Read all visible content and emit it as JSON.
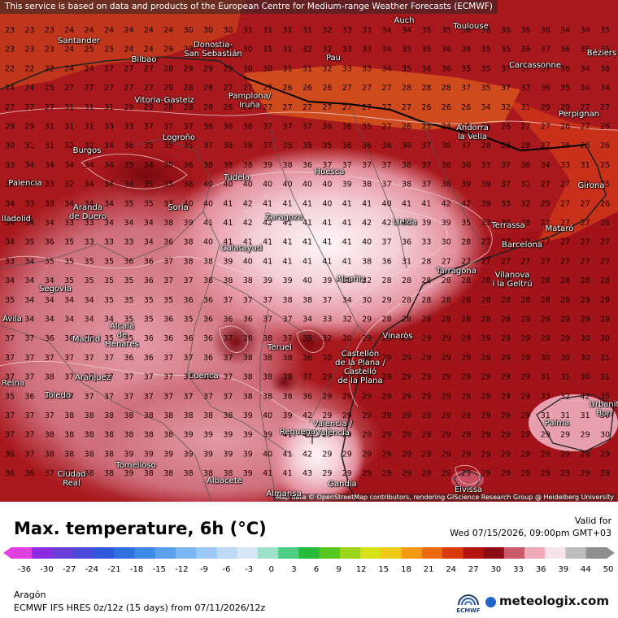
{
  "map": {
    "disclaimer": "This service is based on data and products of the European Centre for Medium-range Weather Forecasts (ECMWF)",
    "attribution": "Map data © OpenStreetMap contributors, rendering GIScience Research Group @ Heidelberg University",
    "cities": [
      {
        "id": "auch",
        "name": "Auch"
      },
      {
        "id": "toulouse",
        "name": "Toulouse"
      },
      {
        "id": "santander",
        "name": "Santander"
      },
      {
        "id": "donostia",
        "name": "Donostia-\nSan Sebastián"
      },
      {
        "id": "bilbao",
        "name": "Bilbao"
      },
      {
        "id": "pau",
        "name": "Pau"
      },
      {
        "id": "carcassonne",
        "name": "Carcassonne"
      },
      {
        "id": "beziers",
        "name": "Béziers"
      },
      {
        "id": "pamplona",
        "name": "Pamplona/\nIruña"
      },
      {
        "id": "vitoria",
        "name": "Vitoria-Gasteiz"
      },
      {
        "id": "perpignan",
        "name": "Perpignan"
      },
      {
        "id": "andorra",
        "name": "Andorra\nla Vella"
      },
      {
        "id": "logrono",
        "name": "Logroño"
      },
      {
        "id": "burgos",
        "name": "Burgos"
      },
      {
        "id": "huesca",
        "name": "Huesca"
      },
      {
        "id": "tudela",
        "name": "Tudela"
      },
      {
        "id": "girona",
        "name": "Girona"
      },
      {
        "id": "palencia",
        "name": "Palencia"
      },
      {
        "id": "aranda",
        "name": "Aranda\nde Duero"
      },
      {
        "id": "soria",
        "name": "Soria"
      },
      {
        "id": "zaragoza",
        "name": "Zaragoza"
      },
      {
        "id": "lleida",
        "name": "Lleida"
      },
      {
        "id": "terrassa",
        "name": "Terrassa"
      },
      {
        "id": "mataro",
        "name": "Mataró"
      },
      {
        "id": "valladolid",
        "name": "lladolid"
      },
      {
        "id": "barcelona",
        "name": "Barcelona"
      },
      {
        "id": "calatayud",
        "name": "Calatayud"
      },
      {
        "id": "tarragona",
        "name": "Tarragona"
      },
      {
        "id": "vilanova",
        "name": "Vilanova\ni la Geltrú"
      },
      {
        "id": "alcaniz",
        "name": "Alcañiz"
      },
      {
        "id": "segovia",
        "name": "Segovia"
      },
      {
        "id": "avila",
        "name": "Ávila"
      },
      {
        "id": "alcala",
        "name": "Alcalá\nde\nHenares"
      },
      {
        "id": "madrid",
        "name": "Madrid"
      },
      {
        "id": "vinaros",
        "name": "Vinaròs"
      },
      {
        "id": "teruel",
        "name": "Teruel"
      },
      {
        "id": "castellon",
        "name": "Castellón\nde la Plana /\nCastelló\nde la Plana"
      },
      {
        "id": "aranjuez",
        "name": "Aranjuez"
      },
      {
        "id": "reina",
        "name": "Reina"
      },
      {
        "id": "cuenca",
        "name": "Cuenca"
      },
      {
        "id": "toledo",
        "name": "Toledo"
      },
      {
        "id": "urbanit",
        "name": "Urbanit\nBon"
      },
      {
        "id": "palma",
        "name": "Palma"
      },
      {
        "id": "valencia",
        "name": "Valencia /\nValència"
      },
      {
        "id": "requena",
        "name": "Requena"
      },
      {
        "id": "ciudadreal",
        "name": "Ciudad\nReal"
      },
      {
        "id": "tomelloso",
        "name": "Tomelloso"
      },
      {
        "id": "albacete",
        "name": "Albacete"
      },
      {
        "id": "gandia",
        "name": "Gandia"
      },
      {
        "id": "almansa",
        "name": "Almansa"
      },
      {
        "id": "eivissa",
        "name": "Eivissa"
      }
    ]
  },
  "footer": {
    "title": "Max. temperature, 6h (°C)",
    "valid_label": "Valid for",
    "valid_time": "Wed 07/15/2026, 09:00pm GMT+03",
    "region": "Aragón",
    "model_line": "ECMWF IFS HRES 0z/12z (15 days) from  07/11/2026/12z",
    "ecmwf_logo_text": "ECMWF",
    "brand": "meteologix.com",
    "brand_icon": "meteologix-logo-icon"
  },
  "legend": {
    "ticks": [
      "-36",
      "-30",
      "-27",
      "-24",
      "-21",
      "-18",
      "-15",
      "-12",
      "-9",
      "-6",
      "-3",
      "0",
      "3",
      "6",
      "9",
      "12",
      "15",
      "18",
      "21",
      "24",
      "27",
      "30",
      "33",
      "36",
      "39",
      "44",
      "50"
    ],
    "colors": [
      "#e040e0",
      "#8a2be2",
      "#6a3fd6",
      "#4b4bd8",
      "#3058d8",
      "#2f70e0",
      "#3e88e8",
      "#5aa2ee",
      "#7ab6f2",
      "#9cc8f5",
      "#bcd9f7",
      "#d6e8f7",
      "#9ee0c8",
      "#4fcf84",
      "#26b83a",
      "#55c71e",
      "#9bd61a",
      "#d6e11a",
      "#f2c81a",
      "#f39a12",
      "#ec6a0c",
      "#d83a0a",
      "#b31410",
      "#8c0c12",
      "#c85a6a",
      "#eeaab8",
      "#f8e3e8",
      "#bdbdbd",
      "#8f8f8f"
    ]
  },
  "grid_values": [
    [
      23,
      23,
      23,
      24,
      24,
      24,
      24,
      24,
      24,
      30,
      30,
      30,
      31,
      31,
      31,
      31,
      32,
      33,
      33,
      34,
      34,
      35,
      35,
      36,
      36,
      36,
      36,
      36,
      34,
      34,
      35
    ],
    [
      23,
      23,
      23,
      24,
      25,
      25,
      24,
      24,
      29,
      29,
      29,
      30,
      30,
      31,
      31,
      32,
      32,
      33,
      33,
      34,
      35,
      35,
      36,
      36,
      35,
      35,
      36,
      37,
      36,
      35,
      35
    ],
    [
      22,
      22,
      22,
      24,
      24,
      27,
      27,
      27,
      28,
      29,
      29,
      29,
      30,
      30,
      31,
      31,
      32,
      33,
      33,
      34,
      35,
      36,
      36,
      35,
      35,
      37,
      37,
      37,
      36,
      34,
      36
    ],
    [
      24,
      24,
      25,
      27,
      27,
      27,
      27,
      27,
      29,
      28,
      28,
      27,
      27,
      27,
      26,
      26,
      26,
      27,
      27,
      27,
      28,
      28,
      28,
      37,
      35,
      37,
      37,
      36,
      35,
      34,
      34
    ],
    [
      27,
      27,
      27,
      31,
      31,
      31,
      29,
      29,
      28,
      28,
      28,
      26,
      26,
      27,
      27,
      27,
      27,
      27,
      27,
      27,
      27,
      26,
      26,
      26,
      34,
      32,
      31,
      29,
      29,
      27,
      27
    ],
    [
      29,
      29,
      31,
      31,
      31,
      33,
      33,
      37,
      37,
      37,
      36,
      36,
      36,
      37,
      37,
      37,
      36,
      36,
      35,
      27,
      26,
      25,
      24,
      25,
      25,
      26,
      27,
      27,
      26,
      27,
      26
    ],
    [
      30,
      31,
      31,
      32,
      32,
      34,
      36,
      35,
      35,
      35,
      37,
      38,
      38,
      37,
      35,
      35,
      35,
      36,
      36,
      36,
      36,
      37,
      38,
      37,
      28,
      28,
      28,
      27,
      26,
      26,
      26
    ],
    [
      33,
      34,
      34,
      34,
      34,
      34,
      35,
      34,
      35,
      36,
      38,
      38,
      38,
      39,
      38,
      36,
      37,
      37,
      37,
      37,
      38,
      37,
      38,
      36,
      37,
      37,
      36,
      34,
      33,
      31,
      25
    ],
    [
      32,
      33,
      33,
      32,
      34,
      34,
      34,
      35,
      35,
      38,
      40,
      40,
      40,
      40,
      40,
      40,
      40,
      39,
      38,
      37,
      38,
      37,
      38,
      39,
      39,
      37,
      31,
      27,
      27,
      26,
      25
    ],
    [
      34,
      33,
      33,
      34,
      34,
      34,
      35,
      35,
      37,
      40,
      40,
      41,
      42,
      41,
      41,
      41,
      40,
      41,
      41,
      40,
      41,
      41,
      42,
      42,
      39,
      33,
      32,
      29,
      27,
      27,
      26
    ],
    [
      34,
      34,
      34,
      33,
      33,
      34,
      34,
      34,
      38,
      39,
      41,
      41,
      42,
      42,
      41,
      41,
      41,
      41,
      42,
      42,
      40,
      39,
      39,
      35,
      33,
      30,
      28,
      27,
      27,
      27,
      26
    ],
    [
      34,
      35,
      36,
      35,
      33,
      33,
      33,
      34,
      36,
      38,
      40,
      41,
      41,
      41,
      41,
      41,
      41,
      41,
      40,
      37,
      36,
      33,
      30,
      28,
      27,
      27,
      27,
      27,
      27,
      27,
      27
    ],
    [
      33,
      34,
      35,
      35,
      35,
      35,
      36,
      36,
      37,
      38,
      38,
      39,
      40,
      41,
      41,
      41,
      41,
      41,
      38,
      36,
      31,
      28,
      27,
      27,
      27,
      27,
      27,
      27,
      27,
      27,
      27
    ],
    [
      34,
      34,
      34,
      35,
      35,
      35,
      35,
      36,
      37,
      37,
      38,
      38,
      38,
      39,
      39,
      40,
      39,
      38,
      32,
      28,
      28,
      28,
      28,
      28,
      28,
      28,
      28,
      28,
      28,
      28,
      28
    ],
    [
      35,
      34,
      34,
      34,
      34,
      35,
      35,
      35,
      35,
      36,
      36,
      37,
      37,
      37,
      38,
      38,
      37,
      34,
      30,
      29,
      28,
      28,
      28,
      28,
      28,
      28,
      28,
      28,
      28,
      29,
      29
    ],
    [
      34,
      34,
      34,
      34,
      34,
      34,
      35,
      35,
      36,
      35,
      36,
      36,
      36,
      37,
      37,
      34,
      33,
      32,
      29,
      28,
      28,
      28,
      28,
      28,
      28,
      28,
      29,
      29,
      29,
      29,
      29
    ],
    [
      37,
      37,
      36,
      36,
      35,
      35,
      35,
      36,
      36,
      36,
      36,
      37,
      38,
      38,
      37,
      35,
      32,
      30,
      29,
      29,
      29,
      29,
      29,
      29,
      29,
      29,
      29,
      29,
      29,
      30,
      30
    ],
    [
      37,
      37,
      37,
      37,
      37,
      37,
      36,
      36,
      37,
      37,
      36,
      37,
      38,
      38,
      38,
      36,
      30,
      29,
      29,
      29,
      29,
      29,
      29,
      29,
      29,
      29,
      29,
      30,
      30,
      30,
      31
    ],
    [
      37,
      37,
      38,
      37,
      37,
      37,
      37,
      37,
      37,
      37,
      36,
      37,
      38,
      38,
      38,
      37,
      29,
      29,
      29,
      29,
      29,
      29,
      29,
      29,
      29,
      29,
      29,
      31,
      31,
      30,
      31
    ],
    [
      35,
      36,
      37,
      37,
      37,
      37,
      37,
      37,
      37,
      37,
      37,
      37,
      38,
      38,
      38,
      36,
      29,
      29,
      29,
      29,
      29,
      29,
      29,
      29,
      29,
      29,
      29,
      33,
      32,
      42,
      35
    ],
    [
      37,
      37,
      37,
      38,
      38,
      38,
      38,
      38,
      38,
      38,
      38,
      38,
      39,
      40,
      39,
      42,
      29,
      29,
      29,
      29,
      29,
      29,
      29,
      29,
      29,
      29,
      29,
      31,
      31,
      31,
      30
    ],
    [
      37,
      37,
      38,
      38,
      38,
      38,
      38,
      38,
      38,
      39,
      39,
      39,
      39,
      39,
      41,
      42,
      29,
      29,
      29,
      29,
      29,
      29,
      29,
      29,
      29,
      29,
      29,
      29,
      29,
      29,
      30
    ],
    [
      36,
      37,
      38,
      38,
      38,
      38,
      39,
      39,
      39,
      39,
      39,
      39,
      39,
      40,
      41,
      42,
      29,
      29,
      29,
      29,
      29,
      29,
      29,
      29,
      29,
      29,
      29,
      29,
      29,
      29,
      29
    ],
    [
      36,
      36,
      37,
      37,
      38,
      38,
      39,
      38,
      38,
      38,
      38,
      38,
      39,
      41,
      41,
      43,
      29,
      29,
      29,
      29,
      29,
      29,
      29,
      29,
      29,
      29,
      29,
      29,
      29,
      29,
      29
    ]
  ]
}
